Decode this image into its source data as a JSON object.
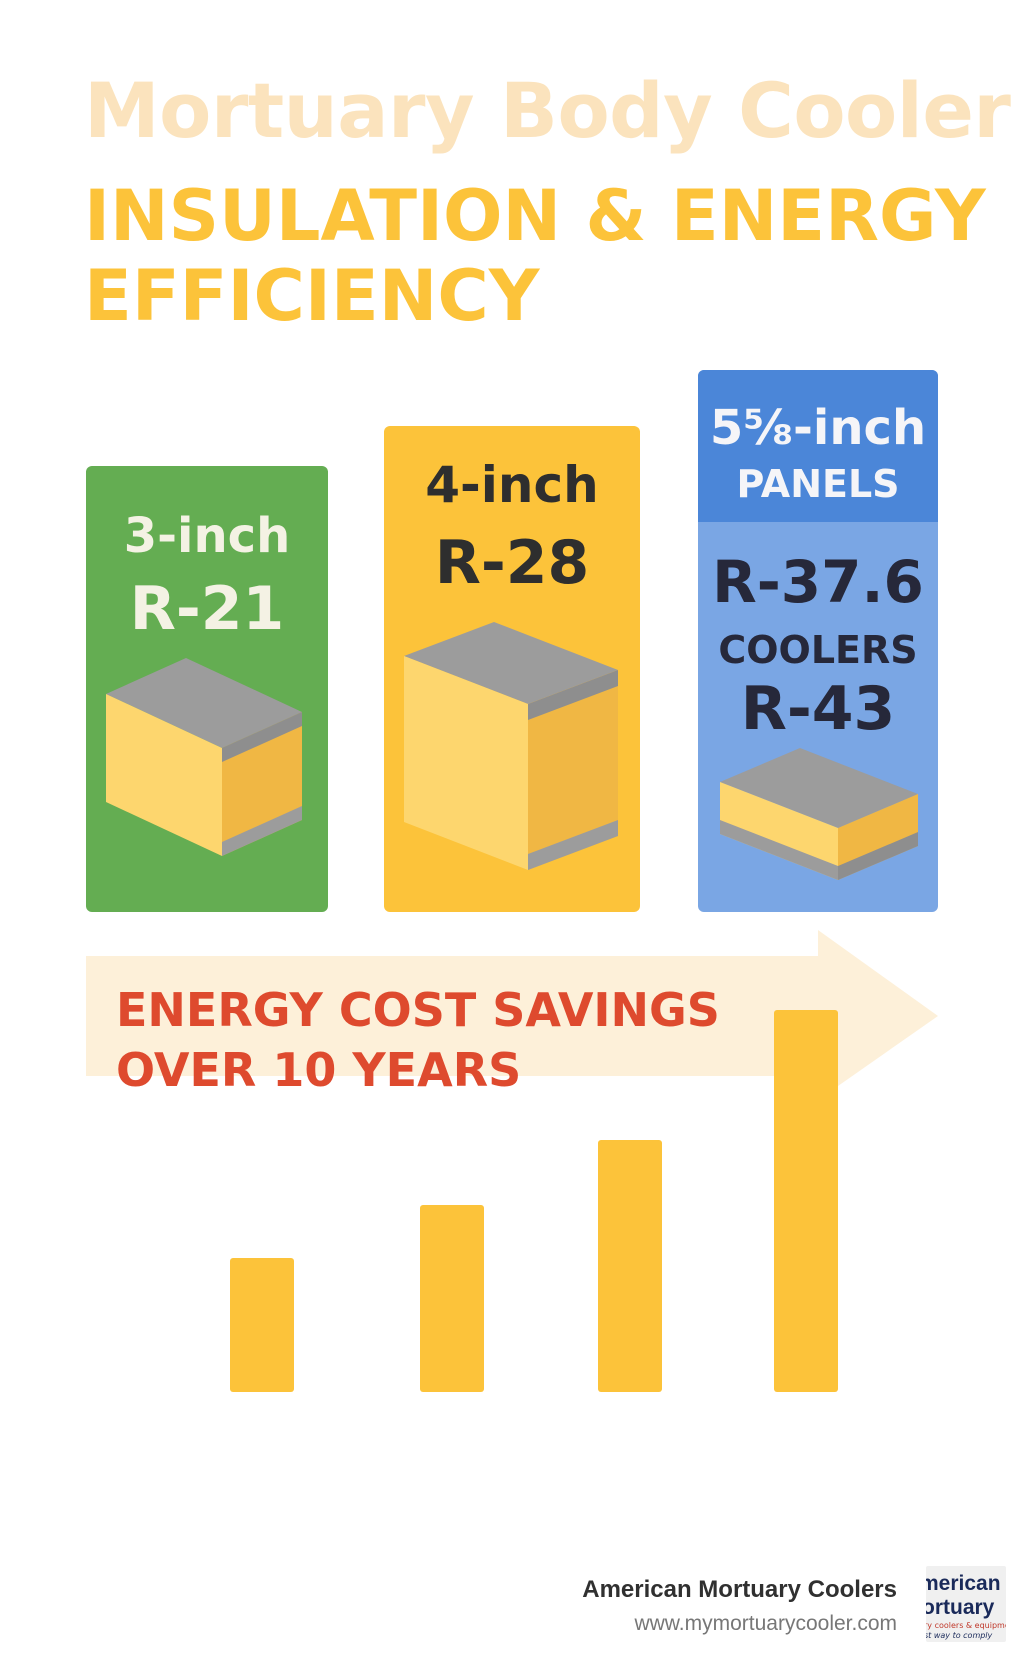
{
  "header": {
    "title": "Mortuary Body Cooler",
    "subtitle": "INSULATION & ENERGY\nEFFICIENCY"
  },
  "panels": [
    {
      "thickness": "3-inch",
      "r_value": "R-21",
      "color": "#64ad52"
    },
    {
      "thickness": "4-inch",
      "r_value": "R-28",
      "color": "#fcc33a"
    },
    {
      "thickness": "5⅝-inch",
      "sub": "PANELS",
      "r_value": "R-37.6",
      "extra_label": "COOLERS",
      "extra_value": "R-43",
      "color": "#7aa6e4",
      "header_color": "#4b86d8"
    }
  ],
  "savings": {
    "label": "ENERGY COST SAVINGS\nOVER 10 YEARS",
    "label_color": "#de4a2e",
    "bar_color": "#fcc33a",
    "relative_levels": [
      0.35,
      0.49,
      0.66,
      1.0
    ]
  },
  "footer": {
    "company": "American Mortuary Coolers",
    "url": "www.mymortuarycooler.com",
    "logo_line1": "merican",
    "logo_line2": "ortuary",
    "logo_line3": "ry coolers & equipment",
    "logo_line4": "st way to comply"
  }
}
